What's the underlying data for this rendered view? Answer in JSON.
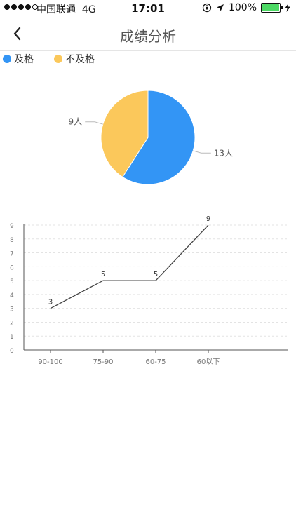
{
  "status_bar": {
    "carrier": "中国联通",
    "network": "4G",
    "time": "17:01",
    "battery_percent": "100%",
    "battery_level": 1.0
  },
  "nav": {
    "title": "成绩分析",
    "back_icon": "chevron-left-icon"
  },
  "colors": {
    "pass": "#3395F5",
    "fail": "#FBC85B"
  },
  "legend": [
    {
      "label": "及格"
    },
    {
      "label": "不及格"
    }
  ],
  "chart_data": [
    {
      "type": "pie",
      "categories": [
        "及格",
        "不及格"
      ],
      "values": [
        13,
        9
      ],
      "labels": [
        "13人",
        "9人"
      ]
    },
    {
      "type": "line",
      "categories": [
        "90-100",
        "75-90",
        "60-75",
        "60以下"
      ],
      "values": [
        3,
        5,
        5,
        9
      ],
      "y_ticks": [
        "0",
        "1",
        "2",
        "3",
        "4",
        "5",
        "6",
        "7",
        "8",
        "9"
      ],
      "ylim": [
        0,
        9
      ],
      "grid": true
    }
  ]
}
